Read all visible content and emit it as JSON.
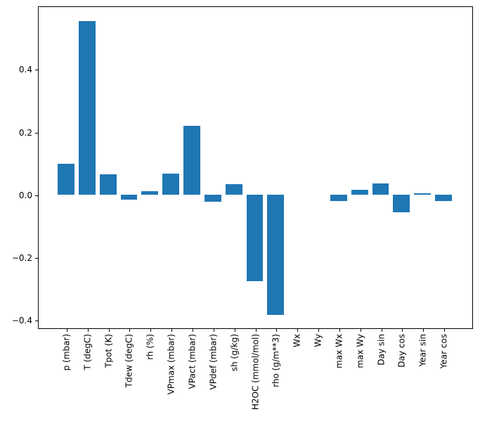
{
  "figure": {
    "background": "#ffffff",
    "spine_color": "#000000",
    "text_color": "#000000"
  },
  "chart_data": {
    "type": "bar",
    "title": "",
    "xlabel": "",
    "ylabel": "",
    "categories": [
      "p (mbar)",
      "T (degC)",
      "Tpot (K)",
      "Tdew (degC)",
      "rh (%)",
      "VPmax (mbar)",
      "VPact (mbar)",
      "VPdef (mbar)",
      "sh (g/kg)",
      "H2OC (mmol/mol)",
      "rho (g/m**3)",
      "Wx",
      "Wy",
      "max Wx",
      "max Wy",
      "Day sin",
      "Day cos",
      "Year sin",
      "Year cos"
    ],
    "values": [
      0.098,
      0.552,
      0.065,
      -0.016,
      0.011,
      0.067,
      0.219,
      -0.022,
      0.034,
      -0.277,
      -0.384,
      0.0,
      0.0,
      -0.02,
      0.016,
      0.036,
      -0.057,
      0.004,
      -0.02
    ],
    "bar_color": "#1f77b4",
    "bar_width": 0.8,
    "grid": false,
    "legend": null,
    "xlim": [
      -1.34,
      19.34
    ],
    "ylim": [
      -0.424,
      0.6
    ],
    "yticks": [
      0.4,
      0.2,
      0.0,
      -0.2,
      -0.4
    ],
    "ytick_labels": [
      "0.4",
      "0.2",
      "0.0",
      "−0.2",
      "−0.4"
    ]
  }
}
